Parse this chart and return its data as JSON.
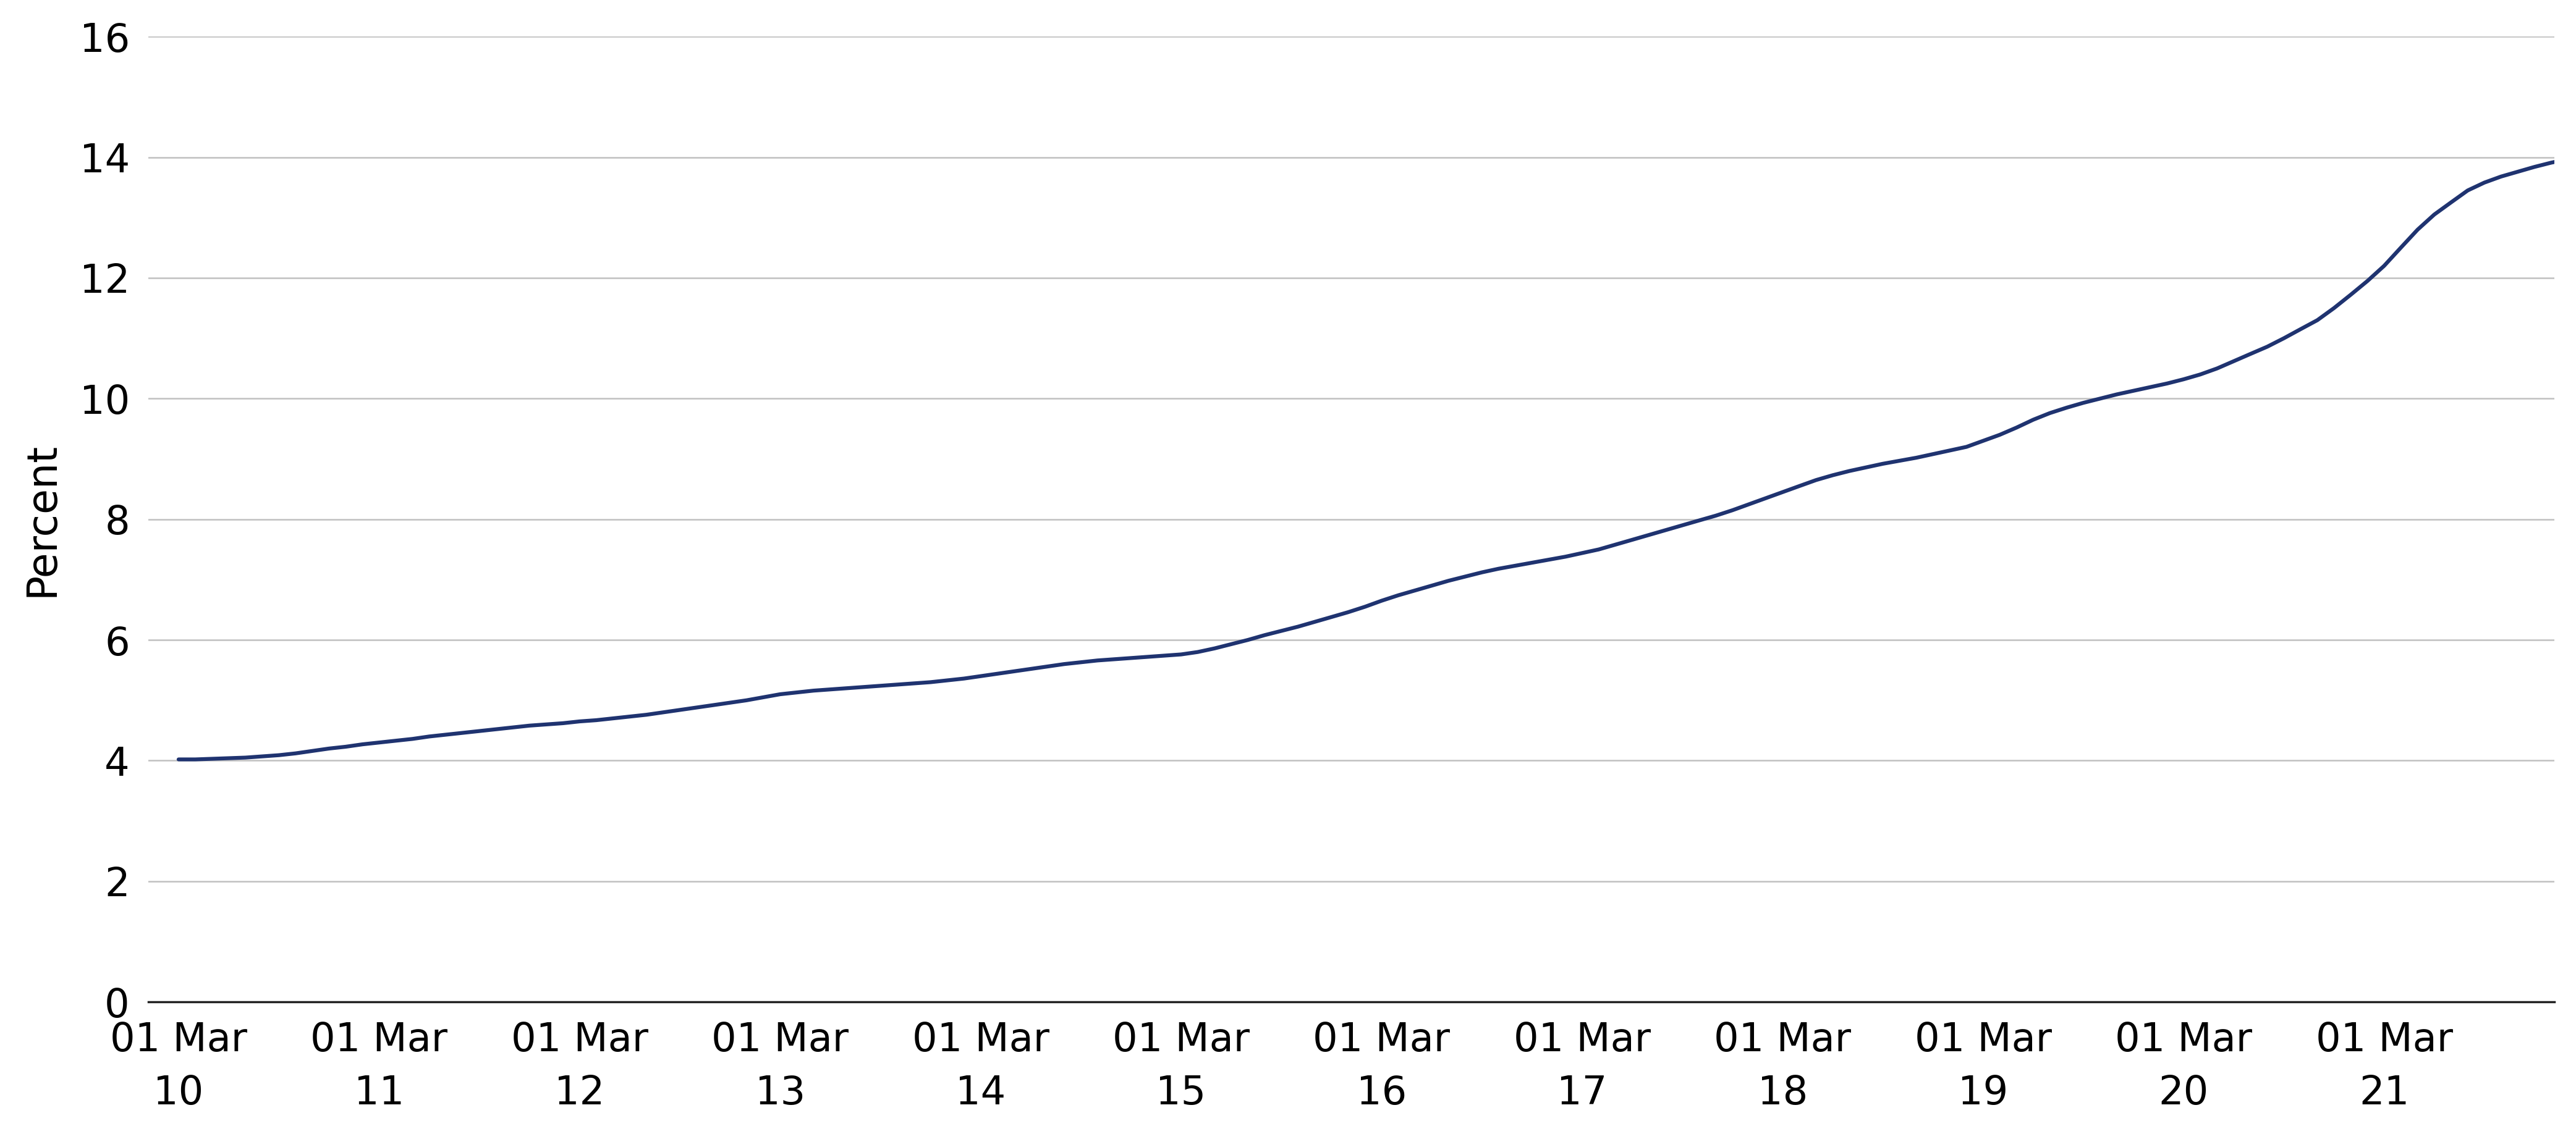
{
  "ylabel": "Percent",
  "line_color": "#1f3370",
  "line_width": 4.5,
  "background_color": "#ffffff",
  "grid_color": "#c0c0c0",
  "ylim": [
    0,
    16
  ],
  "yticks": [
    0,
    2,
    4,
    6,
    8,
    10,
    12,
    14,
    16
  ],
  "xtick_labels": [
    [
      "01 Mar",
      "10"
    ],
    [
      "01 Mar",
      "11"
    ],
    [
      "01 Mar",
      "12"
    ],
    [
      "01 Mar",
      "13"
    ],
    [
      "01 Mar",
      "14"
    ],
    [
      "01 Mar",
      "15"
    ],
    [
      "01 Mar",
      "16"
    ],
    [
      "01 Mar",
      "17"
    ],
    [
      "01 Mar",
      "18"
    ],
    [
      "01 Mar",
      "19"
    ],
    [
      "01 Mar",
      "20"
    ],
    [
      "01 Mar",
      "21"
    ]
  ],
  "xtick_positions": [
    0,
    1,
    2,
    3,
    4,
    5,
    6,
    7,
    8,
    9,
    10,
    11
  ],
  "x_positions_float": [
    0.0,
    0.083,
    0.167,
    0.25,
    0.333,
    0.417,
    0.5,
    0.583,
    0.667,
    0.75,
    0.833,
    0.917,
    1.0,
    1.083,
    1.167,
    1.25,
    1.333,
    1.417,
    1.5,
    1.583,
    1.667,
    1.75,
    1.833,
    1.917,
    2.0,
    2.083,
    2.167,
    2.25,
    2.333,
    2.417,
    2.5,
    2.583,
    2.667,
    2.75,
    2.833,
    2.917,
    3.0,
    3.083,
    3.167,
    3.25,
    3.333,
    3.417,
    3.5,
    3.583,
    3.667,
    3.75,
    3.833,
    3.917,
    4.0,
    4.083,
    4.167,
    4.25,
    4.333,
    4.417,
    4.5,
    4.583,
    4.667,
    4.75,
    4.833,
    4.917,
    5.0,
    5.083,
    5.167,
    5.25,
    5.333,
    5.417,
    5.5,
    5.583,
    5.667,
    5.75,
    5.833,
    5.917,
    6.0,
    6.083,
    6.167,
    6.25,
    6.333,
    6.417,
    6.5,
    6.583,
    6.667,
    6.75,
    6.833,
    6.917,
    7.0,
    7.083,
    7.167,
    7.25,
    7.333,
    7.417,
    7.5,
    7.583,
    7.667,
    7.75,
    7.833,
    7.917,
    8.0,
    8.083,
    8.167,
    8.25,
    8.333,
    8.417,
    8.5,
    8.583,
    8.667,
    8.75,
    8.833,
    8.917,
    9.0,
    9.083,
    9.167,
    9.25,
    9.333,
    9.417,
    9.5,
    9.583,
    9.667,
    9.75,
    9.833,
    9.917,
    10.0,
    10.083,
    10.167,
    10.25,
    10.333,
    10.417,
    10.5,
    10.583,
    10.667,
    10.75,
    10.833,
    10.917,
    11.0,
    11.083,
    11.167,
    11.25,
    11.333,
    11.417,
    11.5,
    11.583,
    11.667,
    11.75,
    11.833,
    11.917
  ],
  "y_values": [
    4.02,
    4.02,
    4.03,
    4.04,
    4.05,
    4.07,
    4.09,
    4.12,
    4.16,
    4.2,
    4.23,
    4.27,
    4.3,
    4.33,
    4.36,
    4.4,
    4.43,
    4.46,
    4.49,
    4.52,
    4.55,
    4.58,
    4.6,
    4.62,
    4.65,
    4.67,
    4.7,
    4.73,
    4.76,
    4.8,
    4.84,
    4.88,
    4.92,
    4.96,
    5.0,
    5.05,
    5.1,
    5.13,
    5.16,
    5.18,
    5.2,
    5.22,
    5.24,
    5.26,
    5.28,
    5.3,
    5.33,
    5.36,
    5.4,
    5.44,
    5.48,
    5.52,
    5.56,
    5.6,
    5.63,
    5.66,
    5.68,
    5.7,
    5.72,
    5.74,
    5.76,
    5.8,
    5.86,
    5.93,
    6.0,
    6.08,
    6.15,
    6.22,
    6.3,
    6.38,
    6.46,
    6.55,
    6.65,
    6.74,
    6.82,
    6.9,
    6.98,
    7.05,
    7.12,
    7.18,
    7.23,
    7.28,
    7.33,
    7.38,
    7.44,
    7.5,
    7.58,
    7.66,
    7.74,
    7.82,
    7.9,
    7.98,
    8.06,
    8.15,
    8.25,
    8.35,
    8.45,
    8.55,
    8.65,
    8.73,
    8.8,
    8.86,
    8.92,
    8.97,
    9.02,
    9.08,
    9.14,
    9.2,
    9.3,
    9.4,
    9.52,
    9.65,
    9.76,
    9.85,
    9.93,
    10.0,
    10.07,
    10.13,
    10.19,
    10.25,
    10.32,
    10.4,
    10.5,
    10.62,
    10.74,
    10.86,
    11.0,
    11.15,
    11.3,
    11.5,
    11.72,
    11.95,
    12.2,
    12.5,
    12.8,
    13.05,
    13.25,
    13.45,
    13.58,
    13.68,
    13.76,
    13.84,
    13.91,
    13.97
  ]
}
